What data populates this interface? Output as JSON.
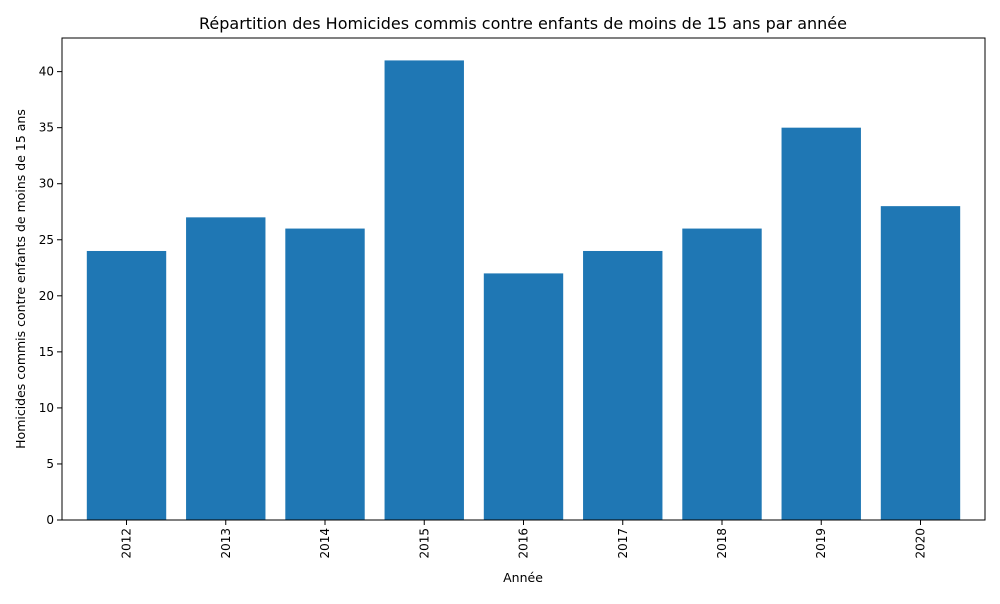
{
  "chart_data": {
    "type": "bar",
    "title": "Répartition des Homicides commis contre enfants de moins de 15 ans par année",
    "xlabel": "Année",
    "ylabel": "Homicides commis contre enfants de moins de 15 ans",
    "categories": [
      "2012",
      "2013",
      "2014",
      "2015",
      "2016",
      "2017",
      "2018",
      "2019",
      "2020"
    ],
    "values": [
      24,
      27,
      26,
      41,
      22,
      24,
      26,
      35,
      28
    ],
    "ylim": [
      0,
      43
    ],
    "yticks": [
      0,
      5,
      10,
      15,
      20,
      25,
      30,
      35,
      40
    ],
    "bar_color": "#1f77b4",
    "grid": false,
    "xtick_rotation": "vertical"
  }
}
